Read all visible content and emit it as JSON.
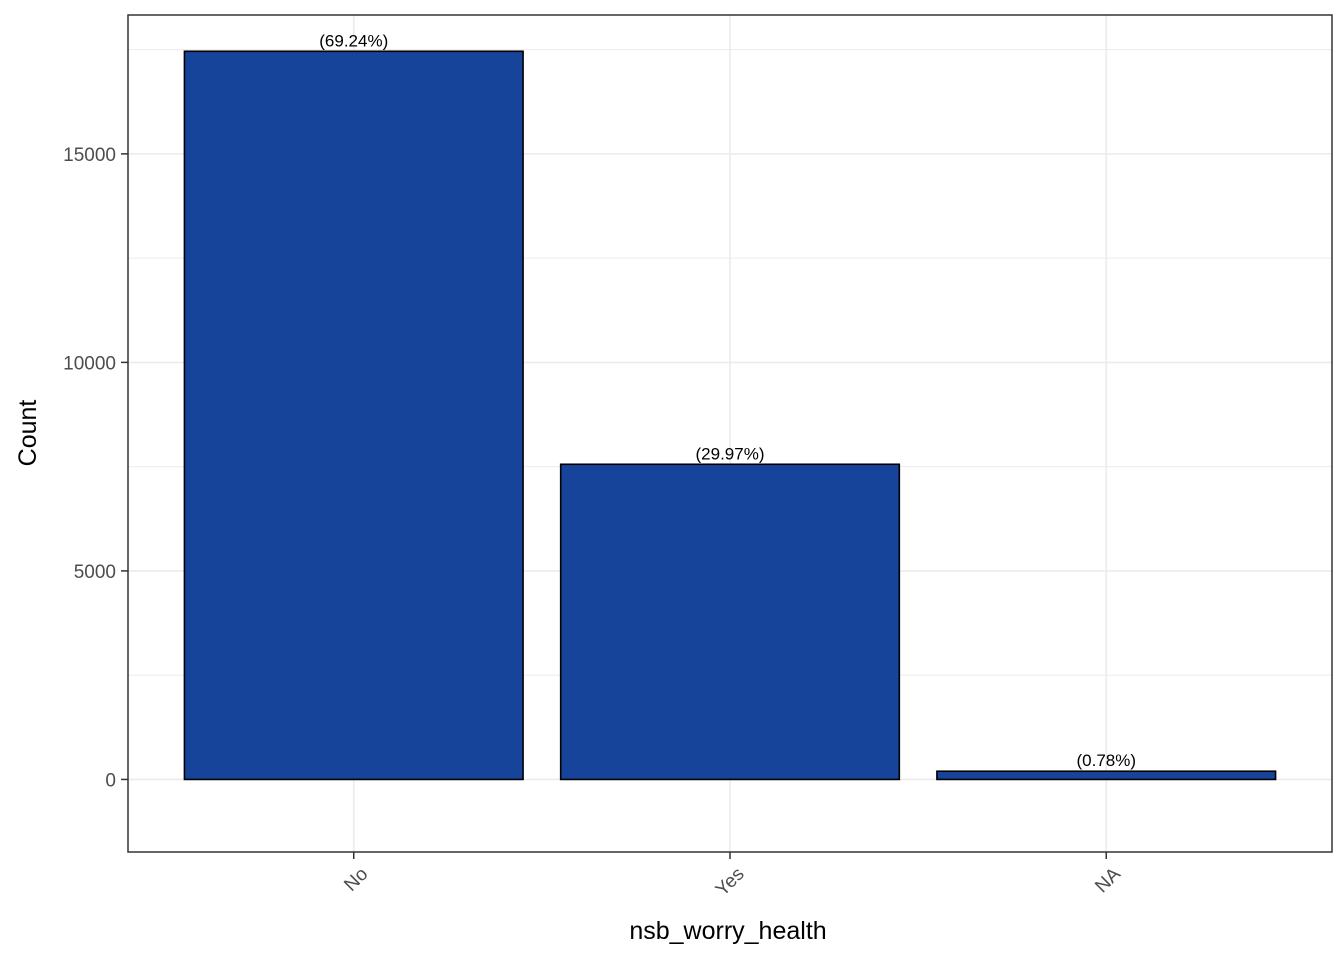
{
  "chart_data": {
    "type": "bar",
    "categories": [
      "No",
      "Yes",
      "NA"
    ],
    "values": [
      17460,
      7557,
      197
    ],
    "labels": [
      "(69.24%)",
      "(29.97%)",
      "(0.78%)"
    ],
    "title": "",
    "xlabel": "nsb_worry_health",
    "ylabel": "Count",
    "ylim": [
      -1740,
      18330
    ],
    "yticks": [
      0,
      5000,
      10000,
      15000
    ],
    "grid": true,
    "legend": "none",
    "bar_fill": "#17449b",
    "bar_stroke": "#000000",
    "grid_color": "#ebebeb",
    "x_tick_rotation": -45
  }
}
